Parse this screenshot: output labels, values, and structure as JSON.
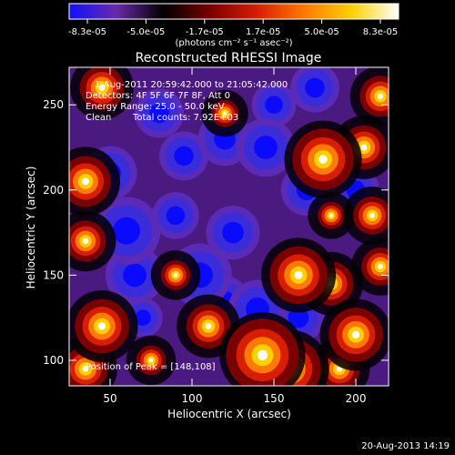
{
  "colorbar": {
    "tick_labels": [
      "-8.3e-05",
      "-5.0e-05",
      "-1.7e-05",
      "1.7e-05",
      "5.0e-05",
      "8.3e-05"
    ],
    "unit_label": "(photons cm⁻² s⁻¹ asec⁻²)",
    "range": [
      -8.3e-05,
      8.3e-05
    ],
    "colormap": [
      "#1010ff",
      "#6a2aa8",
      "#000000",
      "#7a0000",
      "#d81e00",
      "#ff7a00",
      "#ffd000",
      "#ffffff"
    ]
  },
  "chart_data": {
    "type": "heatmap",
    "title": "Reconstructed RHESSI Image",
    "xlabel": "Heliocentric X (arcsec)",
    "ylabel": "Heliocentric Y (arcsec)",
    "xlim": [
      25,
      220
    ],
    "ylim": [
      85,
      272
    ],
    "x_ticks": [
      50,
      100,
      150,
      200
    ],
    "y_ticks": [
      100,
      150,
      200,
      250
    ],
    "annotations": [
      "1-Aug-2011 20:59:42.000 to 21:05:42.000",
      "Detectors: 4F 5F 6F 7F 8F, Att 0",
      "Energy Range: 25.0 - 50.0 keV",
      "Clean",
      "Total counts: 7.92E+03"
    ],
    "peak_label": "Position of Peak = [148,108]",
    "blobs": [
      {
        "x": 143,
        "y": 103,
        "v": 1.0
      },
      {
        "x": 160,
        "y": 95,
        "v": 0.85
      },
      {
        "x": 110,
        "y": 120,
        "v": 0.6
      },
      {
        "x": 45,
        "y": 120,
        "v": 0.75
      },
      {
        "x": 35,
        "y": 95,
        "v": 0.6
      },
      {
        "x": 35,
        "y": 170,
        "v": 0.55
      },
      {
        "x": 35,
        "y": 205,
        "v": 0.7
      },
      {
        "x": 45,
        "y": 260,
        "v": 0.6
      },
      {
        "x": 215,
        "y": 255,
        "v": 0.55
      },
      {
        "x": 205,
        "y": 225,
        "v": 0.6
      },
      {
        "x": 180,
        "y": 218,
        "v": 0.85
      },
      {
        "x": 210,
        "y": 185,
        "v": 0.5
      },
      {
        "x": 165,
        "y": 150,
        "v": 0.8
      },
      {
        "x": 185,
        "y": 145,
        "v": 0.6
      },
      {
        "x": 200,
        "y": 115,
        "v": 0.75
      },
      {
        "x": 190,
        "y": 95,
        "v": 0.55
      },
      {
        "x": 215,
        "y": 155,
        "v": 0.5
      },
      {
        "x": 75,
        "y": 100,
        "v": 0.35
      },
      {
        "x": 90,
        "y": 150,
        "v": 0.35
      },
      {
        "x": 120,
        "y": 245,
        "v": 0.3
      },
      {
        "x": 185,
        "y": 185,
        "v": 0.3
      },
      {
        "x": 60,
        "y": 176,
        "v": -0.9
      },
      {
        "x": 65,
        "y": 150,
        "v": -0.7
      },
      {
        "x": 50,
        "y": 210,
        "v": -0.6
      },
      {
        "x": 105,
        "y": 150,
        "v": -0.8
      },
      {
        "x": 125,
        "y": 175,
        "v": -0.6
      },
      {
        "x": 145,
        "y": 225,
        "v": -0.7
      },
      {
        "x": 120,
        "y": 230,
        "v": -0.6
      },
      {
        "x": 95,
        "y": 220,
        "v": -0.5
      },
      {
        "x": 175,
        "y": 260,
        "v": -0.5
      },
      {
        "x": 170,
        "y": 200,
        "v": -0.55
      },
      {
        "x": 200,
        "y": 200,
        "v": -0.45
      },
      {
        "x": 140,
        "y": 130,
        "v": -0.7
      },
      {
        "x": 165,
        "y": 125,
        "v": -0.55
      },
      {
        "x": 120,
        "y": 135,
        "v": -0.5
      },
      {
        "x": 80,
        "y": 245,
        "v": -0.5
      },
      {
        "x": 150,
        "y": 250,
        "v": -0.4
      },
      {
        "x": 70,
        "y": 125,
        "v": -0.3
      },
      {
        "x": 90,
        "y": 185,
        "v": -0.45
      }
    ]
  },
  "footer": {
    "timestamp": "20-Aug-2013 14:19"
  }
}
